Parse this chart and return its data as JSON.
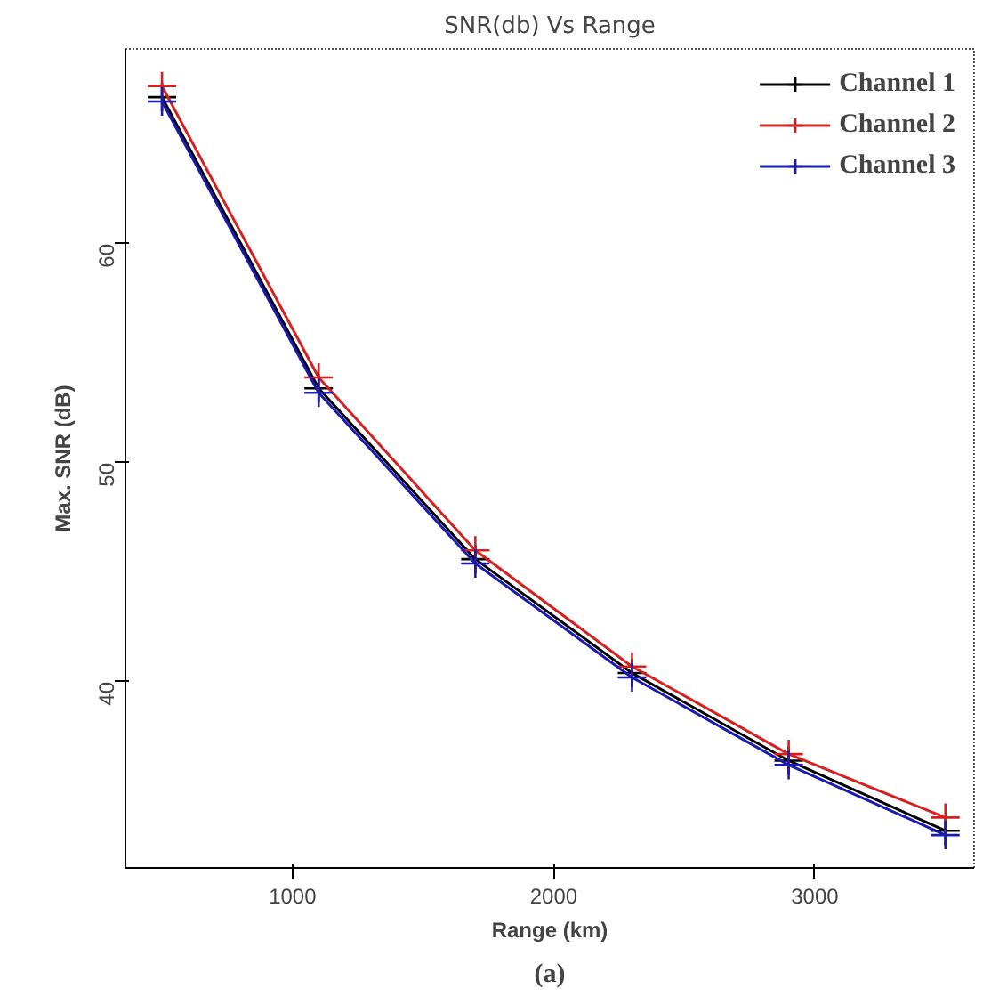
{
  "chart_data": {
    "type": "line",
    "title": "SNR(db) Vs Range",
    "xlabel": "Range (km)",
    "ylabel": "Max. SNR (dB)",
    "x": [
      500,
      1100,
      1700,
      2300,
      2900,
      3500
    ],
    "series": [
      {
        "name": "Channel 1",
        "color": "#000000",
        "values": [
          66.7,
          53.4,
          45.6,
          40.4,
          36.4,
          33.2
        ]
      },
      {
        "name": "Channel 2",
        "color": "#d62020",
        "values": [
          67.2,
          53.9,
          46.0,
          40.7,
          36.7,
          33.8
        ]
      },
      {
        "name": "Channel 3",
        "color": "#1a1ab4",
        "values": [
          66.5,
          53.2,
          45.4,
          40.2,
          36.2,
          33.0
        ]
      }
    ],
    "xlim": [
      360,
      3610
    ],
    "ylim": [
      31.5,
      68.9
    ],
    "xticks": [
      1000,
      2000,
      3000
    ],
    "yticks": [
      40,
      50,
      60
    ],
    "marker": "cross",
    "line_style": "solid",
    "grid": false,
    "legend": "top right",
    "annotations": [
      "(a)"
    ]
  }
}
